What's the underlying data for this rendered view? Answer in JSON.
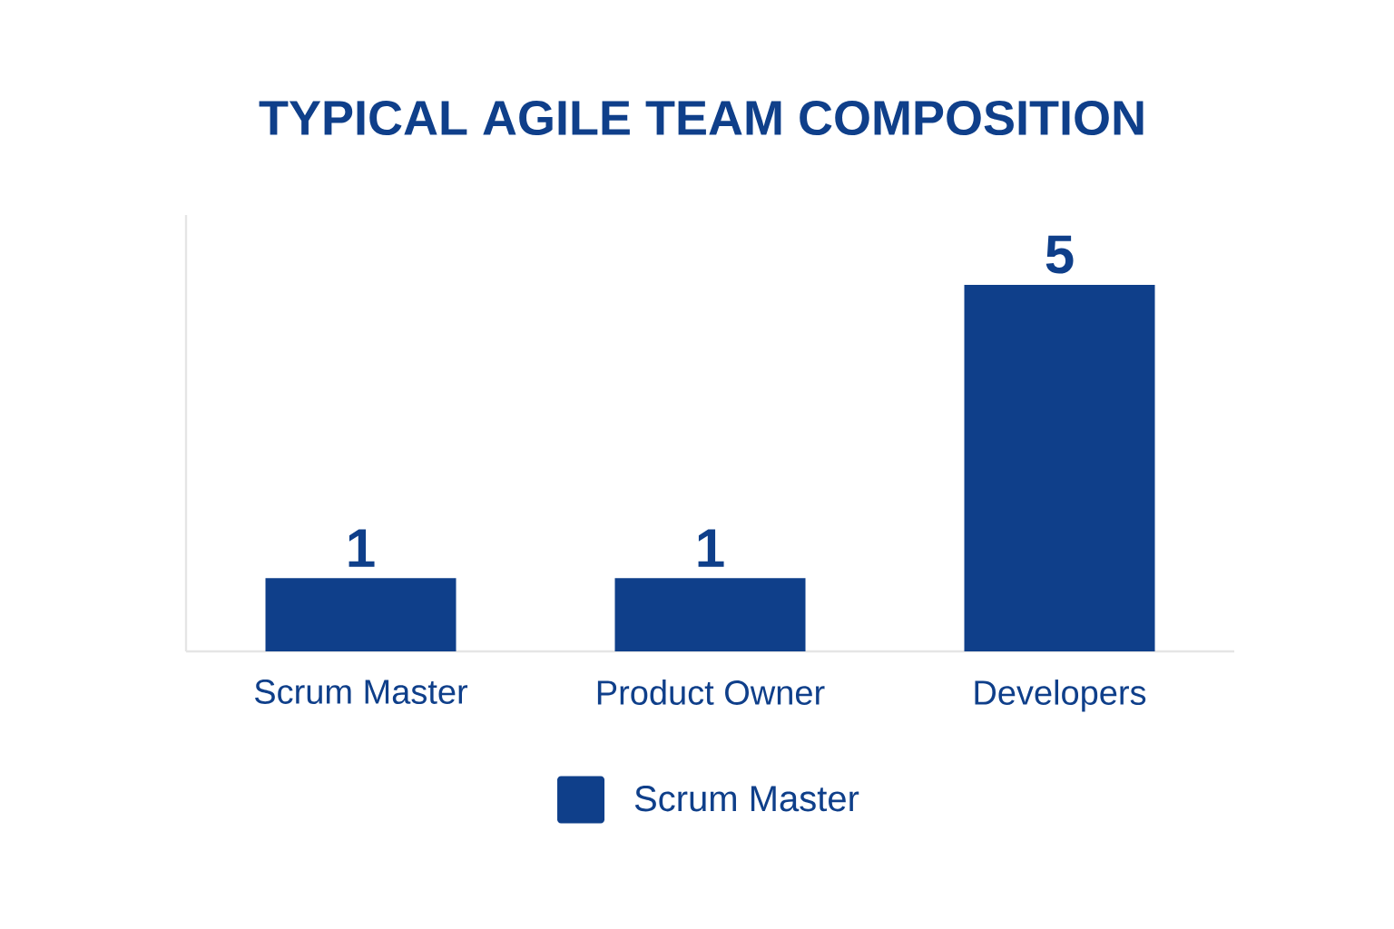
{
  "chart_data": {
    "type": "bar",
    "title": "TYPICAL AGILE TEAM COMPOSITION",
    "categories": [
      "Scrum Master",
      "Product Owner",
      "Developers"
    ],
    "series": [
      {
        "name": "Scrum Master",
        "color": "#0f3f8a",
        "values": [
          1,
          1,
          5
        ]
      }
    ],
    "data_labels": true,
    "legend": "bottom",
    "grid": false
  }
}
